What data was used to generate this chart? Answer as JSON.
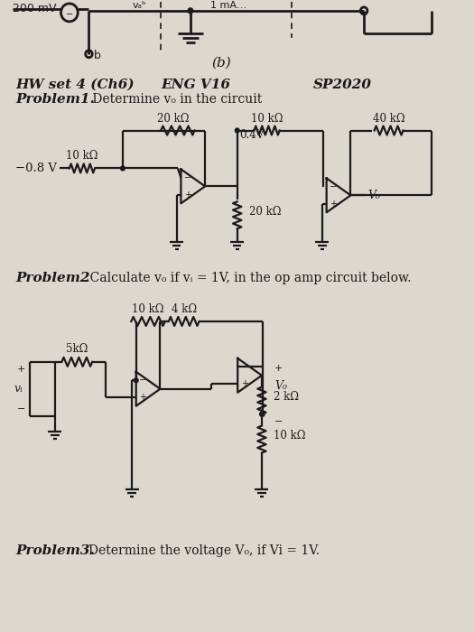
{
  "bg_color": "#dcd8cf",
  "text_color": "#1a1a1a",
  "top_label": "(b)",
  "hw_label": "HW set 4 (Ch6)",
  "eng_label": "ENG V16",
  "sp_label": "SP2020",
  "prob1_bold": "Problem1.",
  "prob1_rest": " Determine v₀ in the circuit",
  "prob2_bold": "Problem2",
  "prob2_rest": " .Calculate v₀ if vᵢ = 1V, in the op amp circuit below.",
  "prob3_bold": "Problem3.",
  "prob3_rest": "Determine the voltage V₀, if Vi = 1V."
}
